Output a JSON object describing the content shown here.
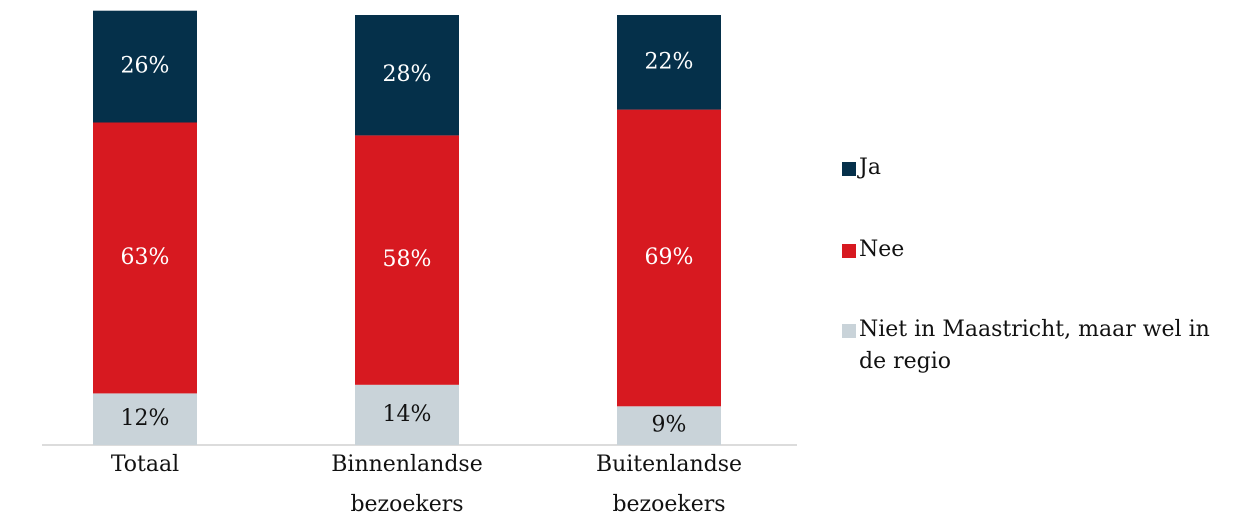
{
  "chart_data": {
    "type": "stacked_bar",
    "categories": [
      "Totaal",
      "Binnenlandse bezoekers",
      "Buitenlandse bezoekers"
    ],
    "series": [
      {
        "name": "Ja",
        "color": "#05304a",
        "values": [
          26,
          28,
          22
        ],
        "value_labels": [
          "26%",
          "28%",
          "22%"
        ]
      },
      {
        "name": "Nee",
        "color": "#d71920",
        "values": [
          63,
          58,
          69
        ],
        "value_labels": [
          "63%",
          "58%",
          "69%"
        ]
      },
      {
        "name": "Niet in Maastricht, maar wel in de regio",
        "color": "#c9d3d9",
        "values": [
          12,
          14,
          9
        ],
        "value_labels": [
          "12%",
          "14%",
          "9%"
        ]
      }
    ],
    "legend": "right"
  }
}
